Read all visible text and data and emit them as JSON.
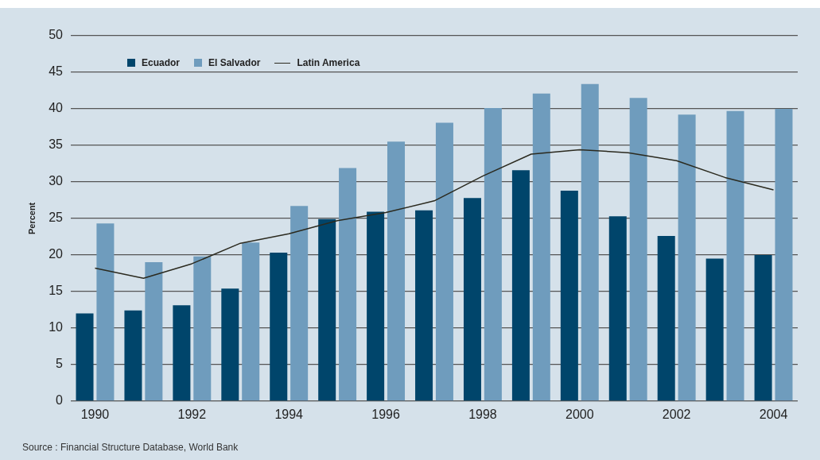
{
  "chart_data": {
    "type": "bar",
    "ylabel": "Percent",
    "categories": [
      "1990",
      null,
      "1992",
      null,
      "1994",
      null,
      "1996",
      null,
      "1998",
      null,
      "2000",
      null,
      "2002",
      null,
      "2004"
    ],
    "series": [
      {
        "name": "Ecuador",
        "color": "#00456b",
        "values": [
          12.0,
          12.4,
          13.1,
          15.4,
          20.3,
          24.9,
          25.9,
          26.1,
          27.8,
          31.6,
          28.8,
          25.3,
          22.6,
          19.5,
          20.0
        ]
      },
      {
        "name": "El Salvador",
        "color": "#6f9cbd",
        "values": [
          24.3,
          19.0,
          19.8,
          21.7,
          26.7,
          31.9,
          35.5,
          38.1,
          40.1,
          42.1,
          43.4,
          41.5,
          39.2,
          39.7,
          40.0
        ]
      },
      {
        "name": "Latin America",
        "type": "line",
        "color": "#2b2a1f",
        "values": [
          18.2,
          16.8,
          18.8,
          21.6,
          22.9,
          24.7,
          25.8,
          27.4,
          30.8,
          33.8,
          34.4,
          34.0,
          32.9,
          30.6,
          28.9
        ]
      }
    ],
    "ylim": [
      0,
      50
    ],
    "yticks": [
      0,
      5,
      10,
      15,
      20,
      25,
      30,
      35,
      40,
      45,
      50
    ],
    "grid": "y",
    "legend": "top left",
    "marker": "none",
    "annotations": [
      "Source : Financial Structure Database, World Bank"
    ]
  }
}
